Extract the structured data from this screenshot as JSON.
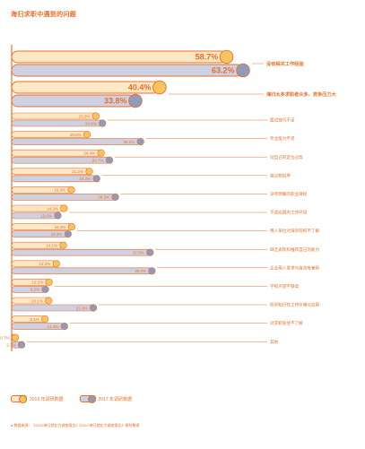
{
  "title": "海归求职中遇到的问题",
  "colors": {
    "accent": "#e8702a",
    "bar2019": "#fde7c4",
    "dot2019": "#f7c35f",
    "bar2017": "#cdd1e2",
    "dot2017": "#8e9bbd",
    "text": "#e8702a"
  },
  "legend": {
    "label_2019": "2019 年调研数据",
    "label_2017": "2017 年调研数据"
  },
  "source": "● 数据来源：《2019海归就业力调查报告》《2017海归就业力调查报告》德科整理",
  "chart_data": {
    "type": "bar",
    "orientation": "horizontal",
    "title": "海归求职中遇到的问题",
    "categories": [
      "没有相关工作经验",
      "海归太多求职者众多、竞争压力大",
      "面试技巧不足",
      "专业能力不足",
      "对自己的定位过高",
      "错过校招季",
      "没有明确的职业目标",
      "不适应国内工作环境",
      "用人单位对海外院校不了解",
      "缺乏表现和推荐自己的能力",
      "企业用人要求与自身有差异",
      "学校声望不够高",
      "所学知识在工作中难以应用",
      "对求职途径不了解",
      "其他"
    ],
    "series": [
      {
        "name": "2019 年调研数据",
        "values": [
          58.7,
          40.4,
          23.0,
          20.6,
          24.4,
          21.2,
          16.3,
          14.3,
          16.4,
          14.1,
          12.2,
          10.2,
          10.1,
          9.1,
          0.7
        ],
        "labels": [
          "58.7%",
          "40.4%",
          "23.0%",
          "20.6%",
          "24.4%",
          "21.2%",
          "16.3%",
          "14.3%",
          "16.4%",
          "14.1%",
          "12.2%",
          "10.2%",
          "10.1%",
          "9.1%",
          "0.7%"
        ]
      },
      {
        "name": "2017 年调研数据",
        "values": [
          63.2,
          33.8,
          24.8,
          35.2,
          26.7,
          23.2,
          28.3,
          12.6,
          15.4,
          37.8,
          38.3,
          9.2,
          22.3,
          14.4,
          2.7
        ],
        "labels": [
          "63.2%",
          "33.8%",
          "24.8%",
          "35.2%",
          "26.7%",
          "23.2%",
          "28.3%",
          "12.6%",
          "15.4%",
          "37.8%",
          "38.3%",
          "9.2%",
          "22.3%",
          "14.4%",
          "2.7%"
        ]
      }
    ],
    "xlim": [
      0,
      70
    ],
    "grid": false,
    "legend_position": "bottom-left"
  }
}
